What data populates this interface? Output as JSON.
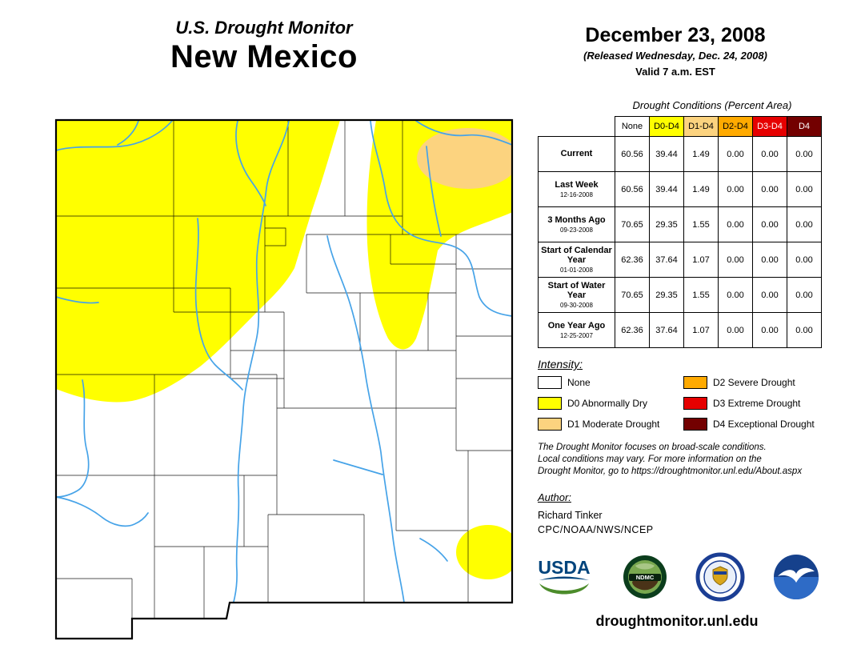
{
  "header": {
    "program": "U.S. Drought Monitor",
    "region": "New Mexico"
  },
  "date_block": {
    "date": "December 23, 2008",
    "released": "(Released Wednesday, Dec. 24, 2008)",
    "valid": "Valid 7 a.m. EST"
  },
  "table": {
    "caption": "Drought Conditions (Percent Area)",
    "columns": [
      "None",
      "D0-D4",
      "D1-D4",
      "D2-D4",
      "D3-D4",
      "D4"
    ],
    "column_colors": [
      "#FFFFFF",
      "#FFFF00",
      "#FCD37F",
      "#FFAA00",
      "#E60000",
      "#730000"
    ],
    "column_text_colors": [
      "#000000",
      "#000000",
      "#000000",
      "#000000",
      "#FFFFFF",
      "#FFFFFF"
    ],
    "rows": [
      {
        "label": "Current",
        "date": "",
        "values": [
          "60.56",
          "39.44",
          "1.49",
          "0.00",
          "0.00",
          "0.00"
        ]
      },
      {
        "label": "Last Week",
        "date": "12-16-2008",
        "values": [
          "60.56",
          "39.44",
          "1.49",
          "0.00",
          "0.00",
          "0.00"
        ]
      },
      {
        "label": "3 Months Ago",
        "date": "09-23-2008",
        "values": [
          "70.65",
          "29.35",
          "1.55",
          "0.00",
          "0.00",
          "0.00"
        ]
      },
      {
        "label": "Start of Calendar Year",
        "date": "01-01-2008",
        "values": [
          "62.36",
          "37.64",
          "1.07",
          "0.00",
          "0.00",
          "0.00"
        ]
      },
      {
        "label": "Start of Water Year",
        "date": "09-30-2008",
        "values": [
          "70.65",
          "29.35",
          "1.55",
          "0.00",
          "0.00",
          "0.00"
        ]
      },
      {
        "label": "One Year Ago",
        "date": "12-25-2007",
        "values": [
          "62.36",
          "37.64",
          "1.07",
          "0.00",
          "0.00",
          "0.00"
        ]
      }
    ]
  },
  "legend": {
    "title": "Intensity:",
    "items": [
      {
        "label": "None",
        "color": "#FFFFFF"
      },
      {
        "label": "D0 Abnormally Dry",
        "color": "#FFFF00"
      },
      {
        "label": "D1 Moderate Drought",
        "color": "#FCD37F"
      },
      {
        "label": "D2 Severe Drought",
        "color": "#FFAA00"
      },
      {
        "label": "D3 Extreme Drought",
        "color": "#E60000"
      },
      {
        "label": "D4 Exceptional Drought",
        "color": "#730000"
      }
    ]
  },
  "disclaimer": {
    "line1": "The Drought Monitor focuses on broad-scale conditions.",
    "line2": "Local conditions may vary. For more information on the",
    "line3": "Drought Monitor, go to https://droughtmonitor.unl.edu/About.aspx"
  },
  "author": {
    "title": "Author:",
    "name": "Richard Tinker",
    "org": "CPC/NOAA/NWS/NCEP"
  },
  "logos": {
    "usda_text": "USDA",
    "ndmc_text": "NDMC"
  },
  "footer": {
    "site": "droughtmonitor.unl.edu"
  },
  "map": {
    "colors": {
      "none": "#FFFFFF",
      "d0": "#FFFF00",
      "d1": "#FCD37F",
      "river": "#46A3E8",
      "county_line": "#000000",
      "state_border": "#000000"
    }
  }
}
